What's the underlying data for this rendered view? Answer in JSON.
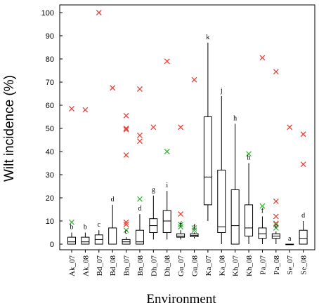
{
  "chart_data": {
    "type": "box",
    "title": "",
    "xlabel": "Environment",
    "ylabel": "Wilt incidence (%)",
    "ylim": [
      0,
      100
    ],
    "yticks": [
      0,
      10,
      20,
      30,
      40,
      50,
      60,
      70,
      80,
      90,
      100
    ],
    "grid": false,
    "legend": "none",
    "colors": {
      "box": "#000000",
      "outlier_red": "#e8403a",
      "outlier_green": "#3cb43c"
    },
    "categories": [
      "Ak_07",
      "Ak_08",
      "Bd_07",
      "Bd_08",
      "Bn_07",
      "Bn_08",
      "Dh_07",
      "Dh_08",
      "Gu_07",
      "Gu_08",
      "Ka_07",
      "Ka_08",
      "Kh_07",
      "Kh_08",
      "Pa_07",
      "Pa_08",
      "Se_07",
      "Se_08"
    ],
    "boxes": [
      {
        "label": "Ak_07",
        "min": 0,
        "q1": 0,
        "median": 1,
        "q3": 3,
        "max": 5,
        "group": "b",
        "red": [
          58.5
        ],
        "green": [
          9.5
        ]
      },
      {
        "label": "Ak_08",
        "min": 0,
        "q1": 0,
        "median": 1,
        "q3": 3,
        "max": 5,
        "group": "b",
        "red": [
          58
        ],
        "green": []
      },
      {
        "label": "Bd_07",
        "min": 0,
        "q1": 0,
        "median": 2,
        "q3": 4,
        "max": 6,
        "group": "c",
        "red": [
          100
        ],
        "green": []
      },
      {
        "label": "Bd_08",
        "min": 0,
        "q1": 0,
        "median": 0,
        "q3": 7,
        "max": 17,
        "group": "d",
        "red": [
          67.5
        ],
        "green": []
      },
      {
        "label": "Bn_07",
        "min": 0,
        "q1": 0,
        "median": 1,
        "q3": 2,
        "max": 3,
        "group": "c",
        "red": [
          55.5,
          50,
          49.5,
          38.5,
          9.5,
          8.5
        ],
        "green": [
          6
        ]
      },
      {
        "label": "Bn_08",
        "min": 0,
        "q1": 0,
        "median": 1,
        "q3": 6,
        "max": 13,
        "group": "d",
        "red": [
          67,
          47,
          44.5
        ],
        "green": [
          19.5
        ]
      },
      {
        "label": "Dh_07",
        "min": 2,
        "q1": 5,
        "median": 8,
        "q3": 11,
        "max": 21,
        "group": "g",
        "red": [
          50.5
        ],
        "green": []
      },
      {
        "label": "Dh_08",
        "min": 2,
        "q1": 5,
        "median": 10,
        "q3": 14.5,
        "max": 23,
        "group": "i",
        "red": [
          79
        ],
        "green": [
          40
        ]
      },
      {
        "label": "Gu_07",
        "min": 2,
        "q1": 3,
        "median": 3.5,
        "q3": 4.5,
        "max": 6,
        "group": "f",
        "red": [
          50.5,
          13
        ],
        "green": [
          8.5,
          7.5
        ]
      },
      {
        "label": "Gu_08",
        "min": 2.5,
        "q1": 3.2,
        "median": 3.8,
        "q3": 4.5,
        "max": 5,
        "group": "f",
        "red": [
          71
        ],
        "green": [
          7,
          6
        ]
      },
      {
        "label": "Ka_07",
        "min": 10,
        "q1": 17,
        "median": 29,
        "q3": 55,
        "max": 87,
        "group": "k",
        "red": [],
        "green": []
      },
      {
        "label": "Ka_08",
        "min": 0,
        "q1": 5,
        "median": 7.5,
        "q3": 32,
        "max": 64,
        "group": "j",
        "red": [],
        "green": []
      },
      {
        "label": "Kh_07",
        "min": 0,
        "q1": 0,
        "median": 8,
        "q3": 23.5,
        "max": 52,
        "group": "h",
        "red": [],
        "green": []
      },
      {
        "label": "Kh_08",
        "min": 0,
        "q1": 3.5,
        "median": 7,
        "q3": 17,
        "max": 35,
        "group": "h",
        "red": [],
        "green": [
          39
        ]
      },
      {
        "label": "Pa_07",
        "min": 0,
        "q1": 2.5,
        "median": 4.5,
        "q3": 7,
        "max": 12,
        "group": "f",
        "red": [
          80.5
        ],
        "green": [
          16.5
        ]
      },
      {
        "label": "Pa_08",
        "min": 0,
        "q1": 2.5,
        "median": 3.5,
        "q3": 4.5,
        "max": 5.5,
        "group": "e",
        "red": [
          74.5,
          18.5,
          12,
          9
        ],
        "green": [
          8.5,
          7
        ]
      },
      {
        "label": "Se_07",
        "min": 0,
        "q1": 0,
        "median": 0,
        "q3": 0,
        "max": 0,
        "group": "a",
        "red": [
          50.5
        ],
        "green": []
      },
      {
        "label": "Se_08",
        "min": 0,
        "q1": 0,
        "median": 2.5,
        "q3": 6,
        "max": 10,
        "group": "d",
        "red": [
          47.5,
          34.5
        ],
        "green": []
      }
    ]
  }
}
